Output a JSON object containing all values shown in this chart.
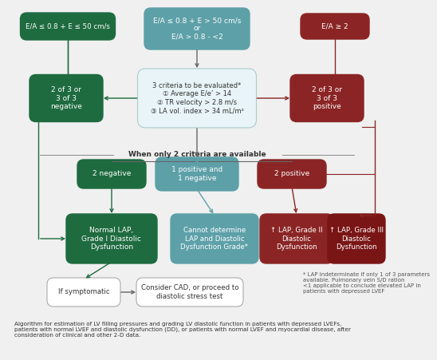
{
  "colors": {
    "green_dark": "#1e6b40",
    "teal": "#5da0a8",
    "teal_light": "#cce8ee",
    "red_dark": "#8b2525",
    "red_medium": "#c05050",
    "white": "#ffffff",
    "gray": "#555555",
    "bg": "#f0f0f0",
    "border_light": "#aacccc"
  },
  "caption": "Algorithm for estimation of LV filling pressures and grading LV diastolic function in patients with depressed LVEFs,\npatients with normal LVEF and diastolic dysfunction (DD), or patients with normal LVEF and myocardial disease, after\nconsideration of clinical and other 2-D data.",
  "footnote": "* LAP indeterminate if only 1 of 3 parameters\navailable. Pulmonary vein S/D ration\n<1 applicable to conclude elevated LAP in\npatients with depressed LVEF",
  "caption_fontsize": 5.2,
  "footnote_fontsize": 5.0
}
